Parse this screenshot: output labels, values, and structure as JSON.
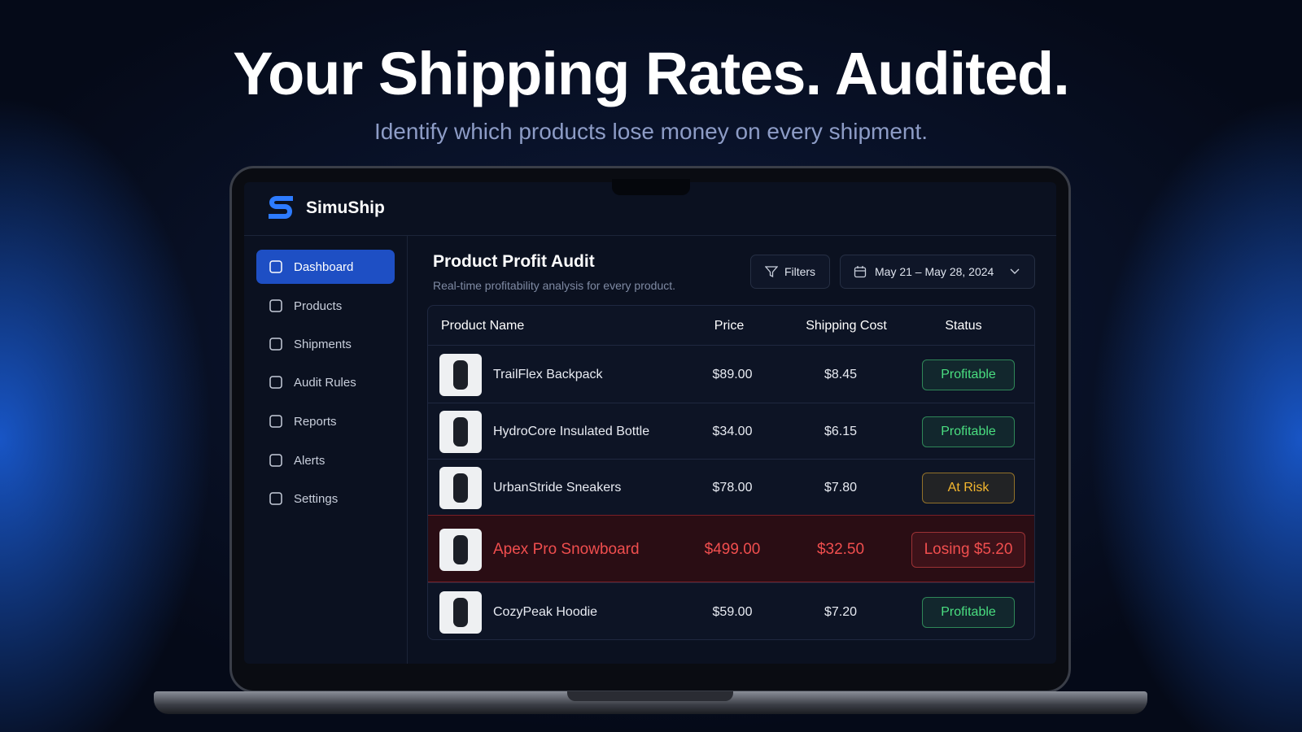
{
  "hero": {
    "title": "Your Shipping Rates. Audited.",
    "subtitle": "Identify which products lose money on every shipment."
  },
  "app": {
    "brand": "SimuShip",
    "nav": [
      "Dashboard",
      "Products",
      "Shipments",
      "Audit Rules",
      "Reports",
      "Alerts",
      "Settings"
    ],
    "page": {
      "title": "Product Profit Audit",
      "subtitle": "Real-time profitability analysis for every product.",
      "filters": "Filters",
      "date_range": "May 21 – May 28, 2024"
    },
    "table": {
      "headers": [
        "Product Name",
        "Price",
        "Shipping Cost",
        "Status"
      ],
      "rows": [
        {
          "name": "TrailFlex Backpack",
          "price": "$89.00",
          "shipping": "$8.45",
          "status": "Profitable",
          "color": "#4ade80",
          "highlighted": false
        },
        {
          "name": "HydroCore Insulated Bottle",
          "price": "$34.00",
          "shipping": "$6.15",
          "status": "Profitable",
          "color": "#4ade80",
          "highlighted": false
        },
        {
          "name": "UrbanStride Sneakers",
          "price": "$78.00",
          "shipping": "$7.80",
          "status": "At Risk",
          "color": "#f5b72e",
          "highlighted": false
        },
        {
          "name": "Apex Pro Snowboard",
          "price": "$499.00",
          "shipping": "$32.50",
          "status": "Losing $5.20",
          "color": "#f04e4e",
          "highlighted": true
        },
        {
          "name": "CozyPeak Hoodie",
          "price": "$59.00",
          "shipping": "$7.20",
          "status": "Profitable",
          "color": "#4ade80",
          "highlighted": false
        }
      ]
    }
  }
}
